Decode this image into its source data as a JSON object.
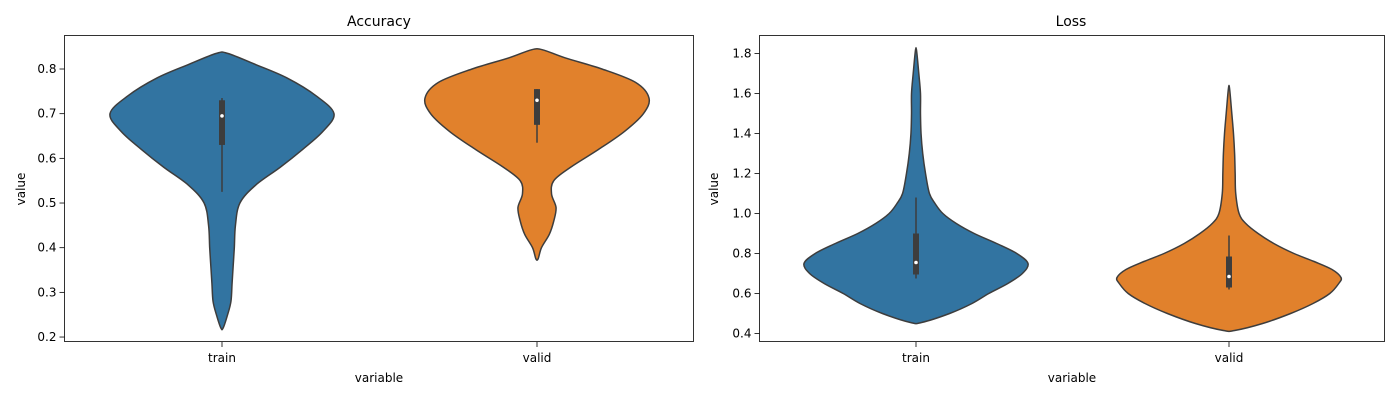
{
  "chart_data": [
    {
      "type": "violin",
      "title": "Accuracy",
      "xlabel": "variable",
      "ylabel": "value",
      "categories": [
        "train",
        "valid"
      ],
      "ylim": [
        0.19,
        0.875
      ],
      "yticks": [
        0.2,
        0.3,
        0.4,
        0.5,
        0.6,
        0.7,
        0.8
      ],
      "ytick_labels": [
        "0.2",
        "0.3",
        "0.4",
        "0.5",
        "0.6",
        "0.7",
        "0.8"
      ],
      "colors": [
        "#3274a1",
        "#e1812c"
      ],
      "series": [
        {
          "category": "train",
          "range": [
            0.22,
            0.835
          ],
          "whisker": [
            0.525,
            0.735
          ],
          "q1": 0.63,
          "median": 0.695,
          "q3": 0.73,
          "density": [
            [
              0.22,
              0.01
            ],
            [
              0.25,
              0.05
            ],
            [
              0.28,
              0.08
            ],
            [
              0.32,
              0.09
            ],
            [
              0.36,
              0.1
            ],
            [
              0.4,
              0.11
            ],
            [
              0.45,
              0.12
            ],
            [
              0.5,
              0.16
            ],
            [
              0.54,
              0.3
            ],
            [
              0.58,
              0.52
            ],
            [
              0.62,
              0.72
            ],
            [
              0.66,
              0.9
            ],
            [
              0.7,
              1.0
            ],
            [
              0.74,
              0.84
            ],
            [
              0.78,
              0.58
            ],
            [
              0.81,
              0.3
            ],
            [
              0.835,
              0.05
            ]
          ]
        },
        {
          "category": "valid",
          "range": [
            0.375,
            0.843
          ],
          "whisker": [
            0.635,
            0.755
          ],
          "q1": 0.675,
          "median": 0.73,
          "q3": 0.755,
          "density": [
            [
              0.375,
              0.01
            ],
            [
              0.4,
              0.04
            ],
            [
              0.43,
              0.11
            ],
            [
              0.46,
              0.15
            ],
            [
              0.49,
              0.17
            ],
            [
              0.52,
              0.13
            ],
            [
              0.55,
              0.15
            ],
            [
              0.58,
              0.3
            ],
            [
              0.62,
              0.55
            ],
            [
              0.66,
              0.78
            ],
            [
              0.7,
              0.95
            ],
            [
              0.735,
              1.0
            ],
            [
              0.77,
              0.88
            ],
            [
              0.8,
              0.58
            ],
            [
              0.825,
              0.25
            ],
            [
              0.843,
              0.05
            ]
          ]
        }
      ]
    },
    {
      "type": "violin",
      "title": "Loss",
      "xlabel": "variable",
      "ylabel": "value",
      "categories": [
        "train",
        "valid"
      ],
      "ylim": [
        0.36,
        1.89
      ],
      "yticks": [
        0.4,
        0.6,
        0.8,
        1.0,
        1.2,
        1.4,
        1.6,
        1.8
      ],
      "ytick_labels": [
        "0.4",
        "0.6",
        "0.8",
        "1.0",
        "1.2",
        "1.4",
        "1.6",
        "1.8"
      ],
      "colors": [
        "#3274a1",
        "#e1812c"
      ],
      "series": [
        {
          "category": "train",
          "range": [
            0.455,
            1.815
          ],
          "whisker": [
            0.675,
            1.08
          ],
          "q1": 0.695,
          "median": 0.755,
          "q3": 0.9,
          "density": [
            [
              0.455,
              0.05
            ],
            [
              0.5,
              0.3
            ],
            [
              0.55,
              0.5
            ],
            [
              0.6,
              0.65
            ],
            [
              0.65,
              0.82
            ],
            [
              0.7,
              0.95
            ],
            [
              0.75,
              1.0
            ],
            [
              0.8,
              0.9
            ],
            [
              0.85,
              0.72
            ],
            [
              0.9,
              0.52
            ],
            [
              0.95,
              0.36
            ],
            [
              1.0,
              0.24
            ],
            [
              1.05,
              0.17
            ],
            [
              1.1,
              0.12
            ],
            [
              1.2,
              0.085
            ],
            [
              1.3,
              0.06
            ],
            [
              1.4,
              0.045
            ],
            [
              1.5,
              0.04
            ],
            [
              1.6,
              0.04
            ],
            [
              1.7,
              0.025
            ],
            [
              1.815,
              0.005
            ]
          ]
        },
        {
          "category": "valid",
          "range": [
            0.415,
            1.625
          ],
          "whisker": [
            0.62,
            0.89
          ],
          "q1": 0.63,
          "median": 0.685,
          "q3": 0.785,
          "density": [
            [
              0.415,
              0.05
            ],
            [
              0.45,
              0.3
            ],
            [
              0.5,
              0.55
            ],
            [
              0.55,
              0.75
            ],
            [
              0.6,
              0.9
            ],
            [
              0.65,
              0.98
            ],
            [
              0.68,
              1.0
            ],
            [
              0.72,
              0.92
            ],
            [
              0.76,
              0.76
            ],
            [
              0.8,
              0.58
            ],
            [
              0.85,
              0.4
            ],
            [
              0.9,
              0.26
            ],
            [
              0.95,
              0.15
            ],
            [
              1.0,
              0.09
            ],
            [
              1.1,
              0.06
            ],
            [
              1.2,
              0.055
            ],
            [
              1.3,
              0.05
            ],
            [
              1.4,
              0.04
            ],
            [
              1.5,
              0.025
            ],
            [
              1.625,
              0.005
            ]
          ]
        }
      ]
    }
  ]
}
